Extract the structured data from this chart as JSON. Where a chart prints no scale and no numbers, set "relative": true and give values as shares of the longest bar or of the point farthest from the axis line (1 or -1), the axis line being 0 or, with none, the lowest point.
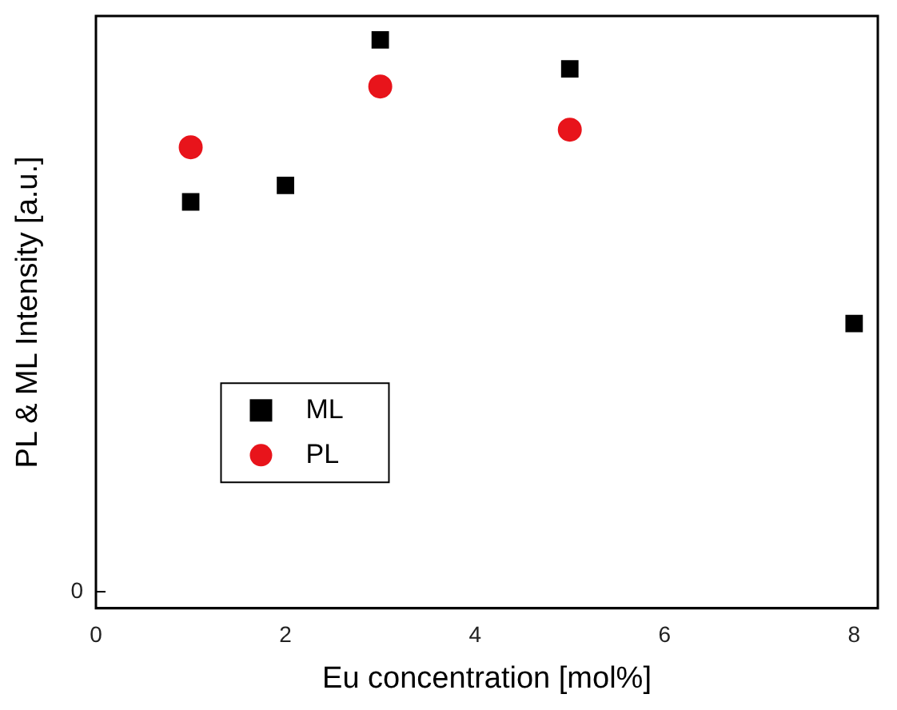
{
  "chart_data": {
    "type": "scatter",
    "xlabel": "Eu concentration [mol%]",
    "ylabel": "PL & ML Intensity [a.u.]",
    "relative": true,
    "xlim": [
      0,
      8.25
    ],
    "xticks": [
      0,
      2,
      4,
      6,
      8
    ],
    "legend": "left",
    "grid": false,
    "annotations": [
      "0"
    ],
    "series": [
      {
        "name": "ML",
        "color": "#000000",
        "marker": "square",
        "x": [
          1,
          2,
          3,
          5,
          8
        ],
        "values": [
          0.715,
          0.744,
          1,
          0.949,
          0.501
        ]
      },
      {
        "name": "PL",
        "color": "#e8141b",
        "marker": "circle",
        "x": [
          1,
          3,
          5
        ],
        "values": [
          0.811,
          0.918,
          0.842
        ]
      }
    ]
  }
}
